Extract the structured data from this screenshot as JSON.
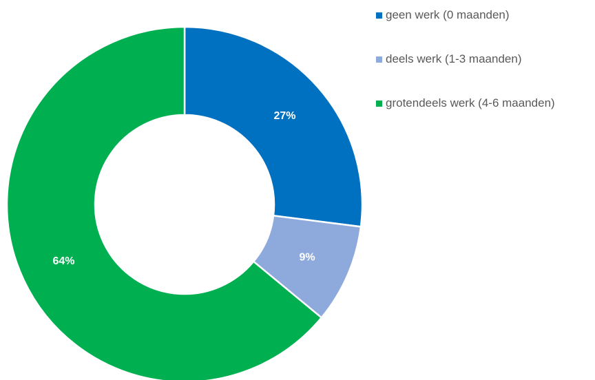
{
  "chart_data": {
    "type": "pie",
    "donut": true,
    "title": "",
    "legend_position": "top-right",
    "categories": [
      "geen werk (0 maanden)",
      "deels werk (1-3 maanden)",
      "grotendeels werk (4-6 maanden)"
    ],
    "values": [
      27,
      9,
      64
    ],
    "labels": [
      "27%",
      "9%",
      "64%"
    ],
    "colors": [
      "#0070C0",
      "#8EA9DB",
      "#00B050"
    ]
  }
}
